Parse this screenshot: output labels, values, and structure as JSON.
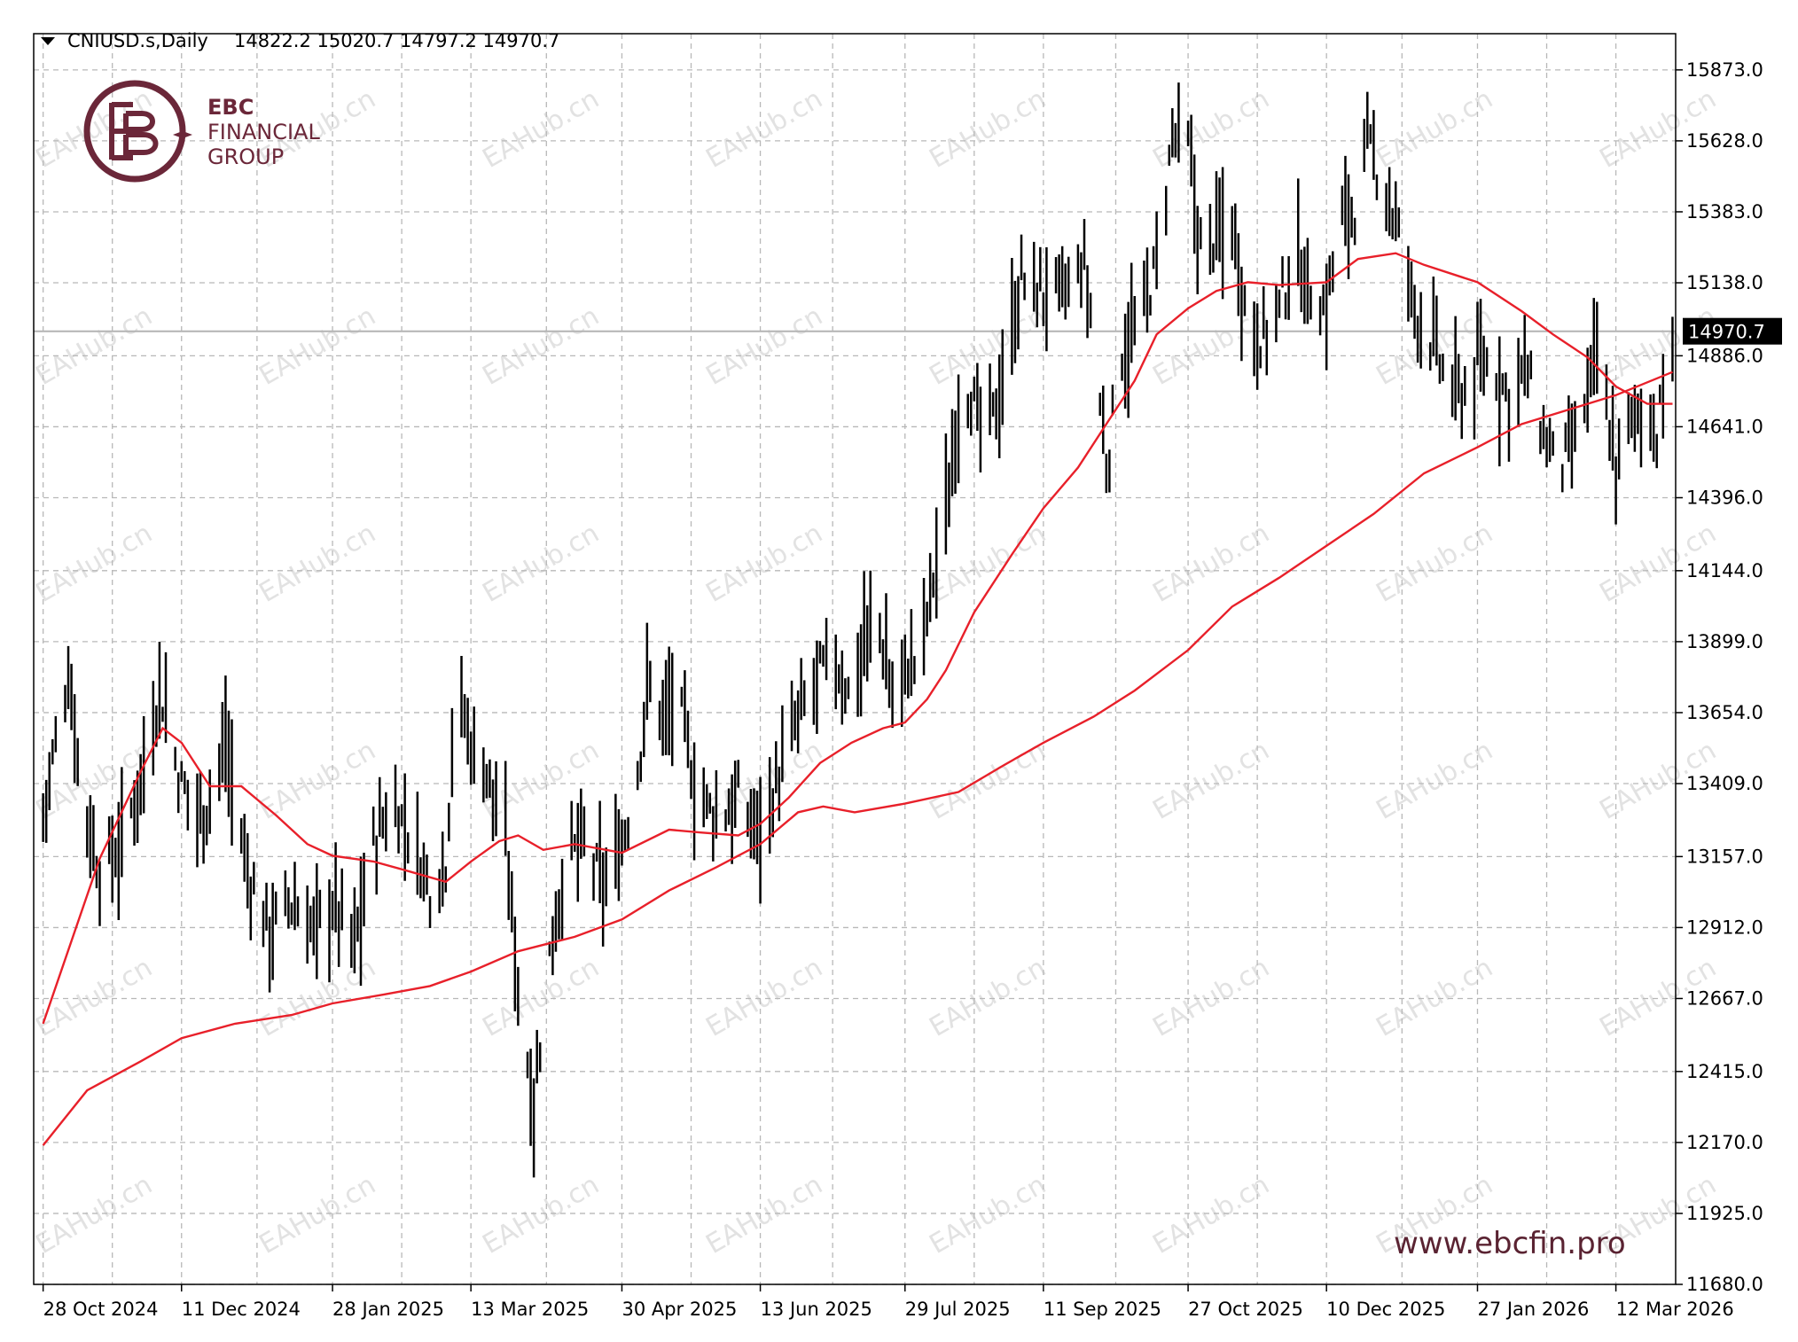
{
  "header": {
    "symbol": "CNIUSD.s,Daily",
    "ohlc": "14822.2 15020.7 14797.2 14970.7"
  },
  "logo": {
    "name": "EBC",
    "line1": "FINANCIAL",
    "line2": "GROUP"
  },
  "watermark_text": "EAHub.cn",
  "url": "www.ebcfin.pro",
  "current_price_label": "14970.7",
  "colors": {
    "price_bars": "#000000",
    "moving_averages": "#e8202a",
    "brand": "#6b2739"
  },
  "chart_data": {
    "type": "bar",
    "title": "CNIUSD.s,Daily",
    "y_ticks": [
      "15873.0",
      "15628.0",
      "15383.0",
      "15138.0",
      "14886.0",
      "14641.0",
      "14396.0",
      "14144.0",
      "13899.0",
      "13654.0",
      "13409.0",
      "13157.0",
      "12912.0",
      "12667.0",
      "12415.0",
      "12170.0",
      "11925.0",
      "11680.0"
    ],
    "x_ticks": [
      "28 Oct 2024",
      "11 Dec 2024",
      "28 Jan 2025",
      "13 Mar 2025",
      "30 Apr 2025",
      "13 Jun 2025",
      "29 Jul 2025",
      "11 Sep 2025",
      "27 Oct 2025",
      "10 Dec 2025",
      "27 Jan 2026",
      "12 Mar 2026"
    ],
    "ylim": [
      11680,
      15998
    ],
    "grid": true,
    "current_price": 14970.7,
    "last_bar": {
      "open": 14822.2,
      "high": 15020.7,
      "low": 14797.2,
      "close": 14970.7
    },
    "price_anchors": [
      {
        "x": "28 Oct 2024",
        "y": 13300
      },
      {
        "x": "5 Nov 2024",
        "y": 13800
      },
      {
        "x": "9 Nov 2024",
        "y": 13400
      },
      {
        "x": "15 Nov 2024",
        "y": 13100
      },
      {
        "x": "22 Nov 2024",
        "y": 13200
      },
      {
        "x": "1 Dec 2024",
        "y": 13550
      },
      {
        "x": "4 Dec 2024",
        "y": 13750
      },
      {
        "x": "11 Dec 2024",
        "y": 13400
      },
      {
        "x": "18 Dec 2024",
        "y": 13300
      },
      {
        "x": "25 Dec 2024",
        "y": 13550
      },
      {
        "x": "1 Jan 2025",
        "y": 13100
      },
      {
        "x": "8 Jan 2025",
        "y": 12900
      },
      {
        "x": "15 Jan 2025",
        "y": 13000
      },
      {
        "x": "22 Jan 2025",
        "y": 12900
      },
      {
        "x": "28 Jan 2025",
        "y": 13000
      },
      {
        "x": "4 Feb 2025",
        "y": 12850
      },
      {
        "x": "10 Feb 2025",
        "y": 13200
      },
      {
        "x": "16 Feb 2025",
        "y": 13350
      },
      {
        "x": "23 Feb 2025",
        "y": 13200
      },
      {
        "x": "28 Feb 2025",
        "y": 13050
      },
      {
        "x": "5 Mar 2025",
        "y": 13150
      },
      {
        "x": "8 Mar 2025",
        "y": 13750
      },
      {
        "x": "13 Mar 2025",
        "y": 13550
      },
      {
        "x": "18 Mar 2025",
        "y": 13450
      },
      {
        "x": "24 Mar 2025",
        "y": 13200
      },
      {
        "x": "29 Mar 2025",
        "y": 12600
      },
      {
        "x": "2 Apr 2025",
        "y": 12300
      },
      {
        "x": "6 Apr 2025",
        "y": 12750
      },
      {
        "x": "12 Apr 2025",
        "y": 13150
      },
      {
        "x": "18 Apr 2025",
        "y": 13200
      },
      {
        "x": "24 Apr 2025",
        "y": 13050
      },
      {
        "x": "30 Apr 2025",
        "y": 13200
      },
      {
        "x": "5 May 2025",
        "y": 13450
      },
      {
        "x": "8 May 2025",
        "y": 13750
      },
      {
        "x": "13 May 2025",
        "y": 13650
      },
      {
        "x": "18 May 2025",
        "y": 13700
      },
      {
        "x": "24 May 2025",
        "y": 13350
      },
      {
        "x": "31 May 2025",
        "y": 13300
      },
      {
        "x": "6 Jun 2025",
        "y": 13350
      },
      {
        "x": "12 Jun 2025",
        "y": 13250
      },
      {
        "x": "18 Jun 2025",
        "y": 13400
      },
      {
        "x": "24 Jun 2025",
        "y": 13600
      },
      {
        "x": "30 Jun 2025",
        "y": 13750
      },
      {
        "x": "6 Jul 2025",
        "y": 13850
      },
      {
        "x": "12 Jul 2025",
        "y": 13700
      },
      {
        "x": "16 Jul 2025",
        "y": 13900
      },
      {
        "x": "21 Jul 2025",
        "y": 13950
      },
      {
        "x": "25 Jul 2025",
        "y": 13700
      },
      {
        "x": "29 Jul 2025",
        "y": 13800
      },
      {
        "x": "3 Aug 2025",
        "y": 13850
      },
      {
        "x": "8 Aug 2025",
        "y": 14200
      },
      {
        "x": "12 Aug 2025",
        "y": 14400
      },
      {
        "x": "16 Aug 2025",
        "y": 14850
      },
      {
        "x": "20 Aug 2025",
        "y": 14700
      },
      {
        "x": "24 Aug 2025",
        "y": 14600
      },
      {
        "x": "29 Aug 2025",
        "y": 14800
      },
      {
        "x": "4 Sep 2025",
        "y": 15150
      },
      {
        "x": "11 Sep 2025",
        "y": 15100
      },
      {
        "x": "18 Sep 2025",
        "y": 15100
      },
      {
        "x": "24 Sep 2025",
        "y": 15200
      },
      {
        "x": "28 Sep 2025",
        "y": 14850
      },
      {
        "x": "1 Oct 2025",
        "y": 14500
      },
      {
        "x": "6 Oct 2025",
        "y": 14900
      },
      {
        "x": "12 Oct 2025",
        "y": 15000
      },
      {
        "x": "18 Oct 2025",
        "y": 15250
      },
      {
        "x": "22 Oct 2025",
        "y": 15650
      },
      {
        "x": "27 Oct 2025",
        "y": 15600
      },
      {
        "x": "31 Oct 2025",
        "y": 15250
      },
      {
        "x": "5 Nov 2025",
        "y": 15300
      },
      {
        "x": "10 Nov 2025",
        "y": 15350
      },
      {
        "x": "15 Nov 2025",
        "y": 15000
      },
      {
        "x": "20 Nov 2025",
        "y": 14950
      },
      {
        "x": "25 Nov 2025",
        "y": 15050
      },
      {
        "x": "30 Nov 2025",
        "y": 15250
      },
      {
        "x": "5 Dec 2025",
        "y": 15100
      },
      {
        "x": "10 Dec 2025",
        "y": 15050
      },
      {
        "x": "14 Dec 2025",
        "y": 15350
      },
      {
        "x": "19 Dec 2025",
        "y": 15400
      },
      {
        "x": "23 Dec 2025",
        "y": 15600
      },
      {
        "x": "28 Dec 2025",
        "y": 15500
      },
      {
        "x": "2 Jan 2026",
        "y": 15300
      },
      {
        "x": "7 Jan 2026",
        "y": 15050
      },
      {
        "x": "12 Jan 2026",
        "y": 14950
      },
      {
        "x": "17 Jan 2026",
        "y": 14800
      },
      {
        "x": "22 Jan 2026",
        "y": 14750
      },
      {
        "x": "27 Jan 2026",
        "y": 14850
      },
      {
        "x": "1 Feb 2026",
        "y": 14850
      },
      {
        "x": "6 Feb 2026",
        "y": 14750
      },
      {
        "x": "11 Feb 2026",
        "y": 14850
      },
      {
        "x": "16 Feb 2026",
        "y": 14650
      },
      {
        "x": "21 Feb 2026",
        "y": 14500
      },
      {
        "x": "26 Feb 2026",
        "y": 14550
      },
      {
        "x": "3 Mar 2026",
        "y": 14750
      },
      {
        "x": "6 Mar 2026",
        "y": 14900
      },
      {
        "x": "12 Mar 2026",
        "y": 14500
      },
      {
        "x": "17 Mar 2026",
        "y": 14650
      },
      {
        "x": "22 Mar 2026",
        "y": 14750
      },
      {
        "x": "25 Mar 2026",
        "y": 14600
      },
      {
        "x": "28 Mar 2026",
        "y": 14850
      },
      {
        "x": "30 Mar 2026",
        "y": 14970.7
      }
    ],
    "series": [
      {
        "color": "#e8202a",
        "points": [
          {
            "x": "28 Oct 2024",
            "y": 12580
          },
          {
            "x": "15 Nov 2024",
            "y": 13150
          },
          {
            "x": "28 Nov 2024",
            "y": 13450
          },
          {
            "x": "5 Dec 2024",
            "y": 13600
          },
          {
            "x": "11 Dec 2024",
            "y": 13550
          },
          {
            "x": "20 Dec 2024",
            "y": 13400
          },
          {
            "x": "30 Dec 2024",
            "y": 13400
          },
          {
            "x": "10 Jan 2025",
            "y": 13300
          },
          {
            "x": "20 Jan 2025",
            "y": 13200
          },
          {
            "x": "28 Jan 2025",
            "y": 13160
          },
          {
            "x": "10 Feb 2025",
            "y": 13140
          },
          {
            "x": "20 Feb 2025",
            "y": 13110
          },
          {
            "x": "5 Mar 2025",
            "y": 13070
          },
          {
            "x": "13 Mar 2025",
            "y": 13140
          },
          {
            "x": "22 Mar 2025",
            "y": 13210
          },
          {
            "x": "28 Mar 2025",
            "y": 13230
          },
          {
            "x": "5 Apr 2025",
            "y": 13180
          },
          {
            "x": "15 Apr 2025",
            "y": 13200
          },
          {
            "x": "30 Apr 2025",
            "y": 13170
          },
          {
            "x": "15 May 2025",
            "y": 13250
          },
          {
            "x": "25 May 2025",
            "y": 13240
          },
          {
            "x": "6 Jun 2025",
            "y": 13230
          },
          {
            "x": "13 Jun 2025",
            "y": 13270
          },
          {
            "x": "22 Jun 2025",
            "y": 13360
          },
          {
            "x": "2 Jul 2025",
            "y": 13480
          },
          {
            "x": "12 Jul 2025",
            "y": 13550
          },
          {
            "x": "22 Jul 2025",
            "y": 13600
          },
          {
            "x": "29 Jul 2025",
            "y": 13620
          },
          {
            "x": "5 Aug 2025",
            "y": 13700
          },
          {
            "x": "11 Aug 2025",
            "y": 13800
          },
          {
            "x": "20 Aug 2025",
            "y": 14000
          },
          {
            "x": "1 Sep 2025",
            "y": 14200
          },
          {
            "x": "11 Sep 2025",
            "y": 14360
          },
          {
            "x": "22 Sep 2025",
            "y": 14500
          },
          {
            "x": "1 Oct 2025",
            "y": 14650
          },
          {
            "x": "10 Oct 2025",
            "y": 14800
          },
          {
            "x": "17 Oct 2025",
            "y": 14960
          },
          {
            "x": "27 Oct 2025",
            "y": 15050
          },
          {
            "x": "5 Nov 2025",
            "y": 15110
          },
          {
            "x": "15 Nov 2025",
            "y": 15140
          },
          {
            "x": "25 Nov 2025",
            "y": 15130
          },
          {
            "x": "10 Dec 2025",
            "y": 15140
          },
          {
            "x": "20 Dec 2025",
            "y": 15220
          },
          {
            "x": "1 Jan 2026",
            "y": 15240
          },
          {
            "x": "10 Jan 2026",
            "y": 15200
          },
          {
            "x": "27 Jan 2026",
            "y": 15140
          },
          {
            "x": "10 Feb 2026",
            "y": 15040
          },
          {
            "x": "20 Feb 2026",
            "y": 14960
          },
          {
            "x": "3 Mar 2026",
            "y": 14880
          },
          {
            "x": "12 Mar 2026",
            "y": 14780
          },
          {
            "x": "22 Mar 2026",
            "y": 14720
          },
          {
            "x": "30 Mar 2026",
            "y": 14720
          }
        ]
      },
      {
        "color": "#e8202a",
        "points": [
          {
            "x": "28 Oct 2024",
            "y": 12160
          },
          {
            "x": "11 Nov 2024",
            "y": 12350
          },
          {
            "x": "28 Nov 2024",
            "y": 12450
          },
          {
            "x": "11 Dec 2024",
            "y": 12530
          },
          {
            "x": "28 Dec 2024",
            "y": 12580
          },
          {
            "x": "15 Jan 2025",
            "y": 12610
          },
          {
            "x": "28 Jan 2025",
            "y": 12650
          },
          {
            "x": "13 Feb 2025",
            "y": 12680
          },
          {
            "x": "28 Feb 2025",
            "y": 12710
          },
          {
            "x": "13 Mar 2025",
            "y": 12760
          },
          {
            "x": "28 Mar 2025",
            "y": 12830
          },
          {
            "x": "15 Apr 2025",
            "y": 12880
          },
          {
            "x": "30 Apr 2025",
            "y": 12940
          },
          {
            "x": "15 May 2025",
            "y": 13040
          },
          {
            "x": "30 May 2025",
            "y": 13120
          },
          {
            "x": "13 Jun 2025",
            "y": 13200
          },
          {
            "x": "25 Jun 2025",
            "y": 13310
          },
          {
            "x": "3 Jul 2025",
            "y": 13330
          },
          {
            "x": "13 Jul 2025",
            "y": 13310
          },
          {
            "x": "29 Jul 2025",
            "y": 13340
          },
          {
            "x": "15 Aug 2025",
            "y": 13380
          },
          {
            "x": "29 Aug 2025",
            "y": 13470
          },
          {
            "x": "11 Sep 2025",
            "y": 13550
          },
          {
            "x": "27 Sep 2025",
            "y": 13640
          },
          {
            "x": "10 Oct 2025",
            "y": 13730
          },
          {
            "x": "27 Oct 2025",
            "y": 13870
          },
          {
            "x": "10 Nov 2025",
            "y": 14020
          },
          {
            "x": "25 Nov 2025",
            "y": 14120
          },
          {
            "x": "10 Dec 2025",
            "y": 14230
          },
          {
            "x": "25 Dec 2025",
            "y": 14340
          },
          {
            "x": "10 Jan 2026",
            "y": 14480
          },
          {
            "x": "27 Jan 2026",
            "y": 14570
          },
          {
            "x": "10 Feb 2026",
            "y": 14650
          },
          {
            "x": "25 Feb 2026",
            "y": 14700
          },
          {
            "x": "12 Mar 2026",
            "y": 14750
          },
          {
            "x": "30 Mar 2026",
            "y": 14830
          }
        ]
      }
    ]
  }
}
